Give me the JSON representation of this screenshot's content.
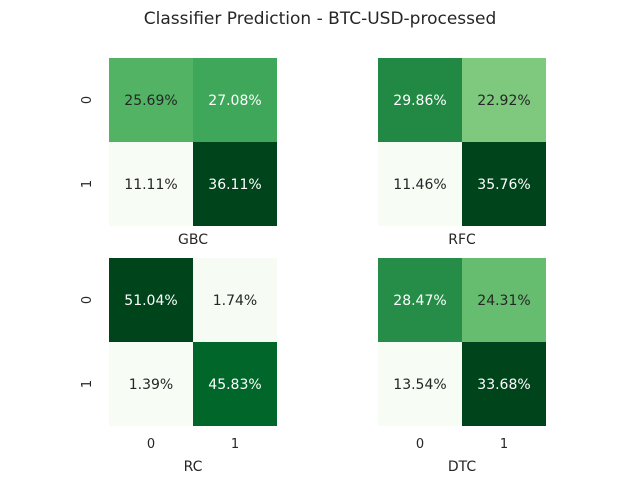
{
  "chart_data": [
    {
      "type": "heatmap",
      "suptitle": "Classifier Prediction - BTC-USD-processed",
      "panels": [
        {
          "name": "GBC",
          "xlabel": "GBC",
          "row_labels": [
            "0",
            "1"
          ],
          "col_labels": [],
          "values": [
            [
              25.69,
              27.08
            ],
            [
              11.11,
              36.11
            ]
          ],
          "labels": [
            [
              "25.69%",
              "27.08%"
            ],
            [
              "11.11%",
              "36.11%"
            ]
          ]
        },
        {
          "name": "RFC",
          "xlabel": "RFC",
          "row_labels": [],
          "col_labels": [],
          "values": [
            [
              29.86,
              22.92
            ],
            [
              11.46,
              35.76
            ]
          ],
          "labels": [
            [
              "29.86%",
              "22.92%"
            ],
            [
              "11.46%",
              "35.76%"
            ]
          ]
        },
        {
          "name": "RC",
          "xlabel": "RC",
          "row_labels": [
            "0",
            "1"
          ],
          "col_labels": [
            "0",
            "1"
          ],
          "values": [
            [
              51.04,
              1.74
            ],
            [
              1.39,
              45.83
            ]
          ],
          "labels": [
            [
              "51.04%",
              "1.74%"
            ],
            [
              "1.39%",
              "45.83%"
            ]
          ]
        },
        {
          "name": "DTC",
          "xlabel": "DTC",
          "row_labels": [],
          "col_labels": [
            "0",
            "1"
          ],
          "values": [
            [
              28.47,
              24.31
            ],
            [
              13.54,
              33.68
            ]
          ],
          "labels": [
            [
              "28.47%",
              "24.31%"
            ],
            [
              "13.54%",
              "33.68%"
            ]
          ]
        }
      ],
      "colormap": "Greens",
      "colorbar": false,
      "grid": false
    }
  ]
}
